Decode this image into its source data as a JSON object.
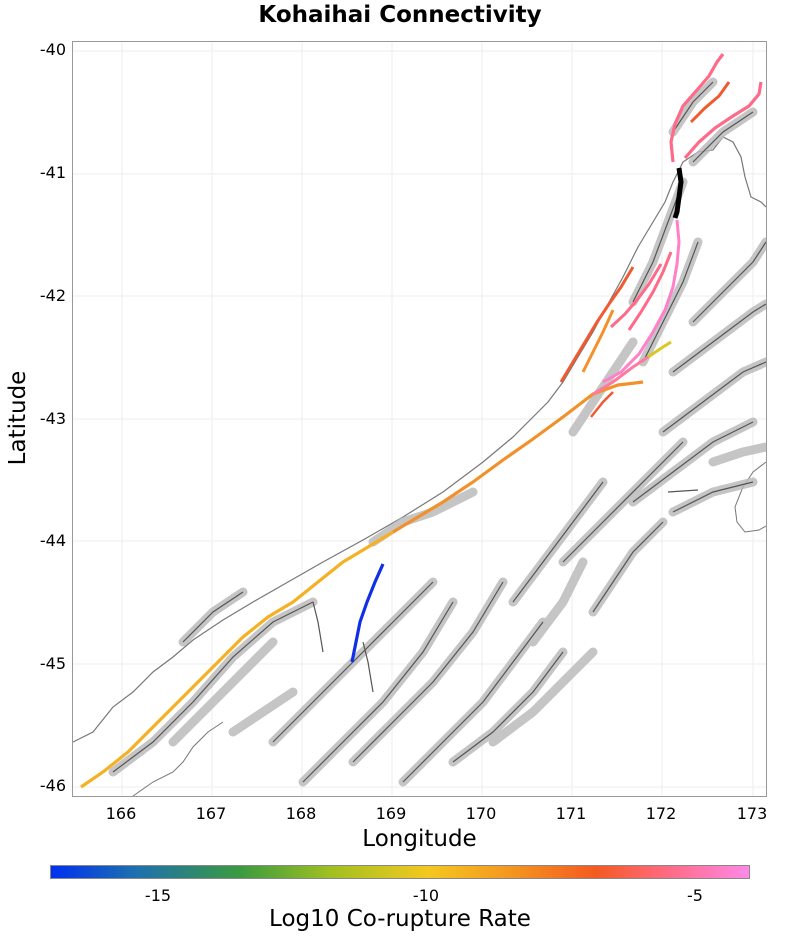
{
  "map": {
    "title": "Kohaihai Connectivity",
    "x_axis_label": "Longitude",
    "y_axis_label": "Latitude",
    "x_ticks": [
      "166",
      "167",
      "168",
      "169",
      "170",
      "171",
      "172",
      "173"
    ],
    "y_ticks": [
      "-40",
      "-41",
      "-42",
      "-43",
      "-44",
      "-45",
      "-46"
    ],
    "lon_range": [
      165.5,
      173.2
    ],
    "lat_range": [
      -46.1,
      -39.95
    ]
  },
  "colorbar": {
    "label": "Log10 Co-rupture Rate",
    "ticks": [
      "-15",
      "-10",
      "-5"
    ],
    "colors": {
      "min": "#0030f0",
      "mid": "#f4c820",
      "high": "#f45a20",
      "max": "#ff88e8"
    }
  },
  "highlight_colors": {
    "source_fault": "#000000",
    "blue": "#1030e8",
    "orange": "#f49a20",
    "red_orange": "#f05a30",
    "pink": "#ff6a88",
    "magenta": "#ff80c8",
    "yellow": "#d8c820"
  }
}
